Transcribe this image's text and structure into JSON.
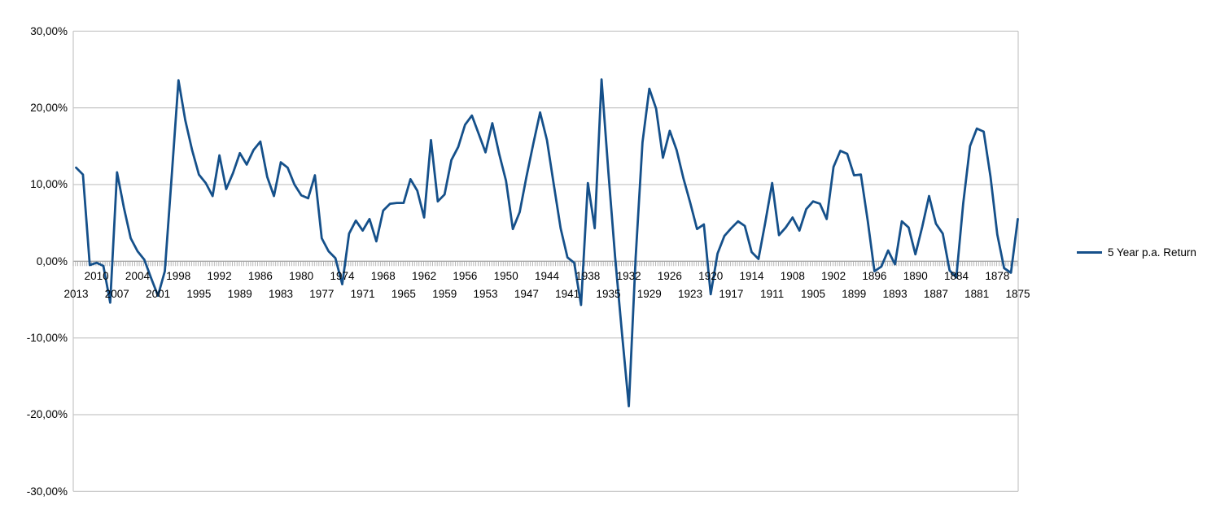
{
  "chart_data": {
    "type": "line",
    "title": "",
    "xlabel": "",
    "ylabel": "",
    "grid": true,
    "legend": {
      "position": "right",
      "label": "5 Year p.a. Return"
    },
    "line_color": "#15508A",
    "grid_color": "#c6c6c6",
    "axis_color": "#a6a6a6",
    "y_axis": {
      "min": -30,
      "max": 30,
      "step": 10,
      "tick_values": [
        30,
        20,
        10,
        0,
        -10,
        -20,
        -30
      ],
      "tick_labels": [
        "30,00%",
        "20,00%",
        "10,00%",
        "0,00%",
        "-10,00%",
        "-20,00%",
        "-30,00%"
      ],
      "format": "percent, comma decimal"
    },
    "x_axis": {
      "direction": "descending years left to right",
      "first_year": 2013,
      "last_year": 1875,
      "label_interval": 3,
      "upper_row_labels": [
        "2010",
        "2004",
        "1998",
        "1992",
        "1986",
        "1980",
        "1974",
        "1968",
        "1962",
        "1956",
        "1950",
        "1944",
        "1938",
        "1932",
        "1926",
        "1920",
        "1914",
        "1908",
        "1902",
        "1896",
        "1890",
        "1884",
        "1878"
      ],
      "lower_row_labels": [
        "2013",
        "2007",
        "2001",
        "1995",
        "1989",
        "1983",
        "1977",
        "1971",
        "1965",
        "1959",
        "1953",
        "1947",
        "1941",
        "1935",
        "1929",
        "1923",
        "1917",
        "1911",
        "1905",
        "1899",
        "1893",
        "1887",
        "1881",
        "1875"
      ]
    },
    "series": [
      {
        "name": "5 Year p.a. Return",
        "unit": "%",
        "x": [
          2013,
          2012,
          2011,
          2010,
          2009,
          2008,
          2007,
          2006,
          2005,
          2004,
          2003,
          2002,
          2001,
          2000,
          1999,
          1998,
          1997,
          1996,
          1995,
          1994,
          1993,
          1992,
          1991,
          1990,
          1989,
          1988,
          1987,
          1986,
          1985,
          1984,
          1983,
          1982,
          1981,
          1980,
          1979,
          1978,
          1977,
          1976,
          1975,
          1974,
          1973,
          1972,
          1971,
          1970,
          1969,
          1968,
          1967,
          1966,
          1965,
          1964,
          1963,
          1962,
          1961,
          1960,
          1959,
          1958,
          1957,
          1956,
          1955,
          1954,
          1953,
          1952,
          1951,
          1950,
          1949,
          1948,
          1947,
          1946,
          1945,
          1944,
          1943,
          1942,
          1941,
          1940,
          1939,
          1938,
          1937,
          1936,
          1935,
          1934,
          1933,
          1932,
          1931,
          1930,
          1929,
          1928,
          1927,
          1926,
          1925,
          1924,
          1923,
          1922,
          1921,
          1920,
          1919,
          1918,
          1917,
          1916,
          1915,
          1914,
          1913,
          1912,
          1911,
          1910,
          1909,
          1908,
          1907,
          1906,
          1905,
          1904,
          1903,
          1902,
          1901,
          1900,
          1899,
          1898,
          1897,
          1896,
          1895,
          1894,
          1893,
          1892,
          1891,
          1890,
          1889,
          1888,
          1887,
          1886,
          1885,
          1884,
          1883,
          1882,
          1881,
          1880,
          1879,
          1878,
          1877,
          1876,
          1875
        ],
        "values": [
          12.2,
          11.3,
          -0.5,
          -0.2,
          -0.6,
          -5.4,
          11.6,
          7.0,
          3.0,
          1.3,
          0.2,
          -2.2,
          -4.5,
          -1.3,
          11.0,
          23.6,
          18.4,
          14.5,
          11.3,
          10.2,
          8.5,
          13.8,
          9.4,
          11.5,
          14.1,
          12.6,
          14.5,
          15.6,
          11.0,
          8.5,
          12.9,
          12.2,
          10.0,
          8.6,
          8.2,
          11.2,
          3.0,
          1.3,
          0.4,
          -3.0,
          3.6,
          5.3,
          4.0,
          5.5,
          2.6,
          6.6,
          7.5,
          7.6,
          7.6,
          10.7,
          9.2,
          5.7,
          15.8,
          7.8,
          8.7,
          13.2,
          14.9,
          17.8,
          19.0,
          16.6,
          14.2,
          18.0,
          14.0,
          10.5,
          4.2,
          6.4,
          11.0,
          15.3,
          19.4,
          15.8,
          10.0,
          4.3,
          0.5,
          -0.2,
          -5.7,
          10.2,
          4.3,
          23.7,
          11.6,
          0.5,
          -9.4,
          -18.9,
          0.5,
          15.5,
          22.5,
          19.9,
          13.5,
          17.0,
          14.5,
          10.8,
          7.6,
          4.2,
          4.8,
          -4.3,
          1.0,
          3.3,
          4.3,
          5.2,
          4.6,
          1.2,
          0.3,
          5.1,
          10.2,
          3.4,
          4.4,
          5.7,
          4.0,
          6.8,
          7.8,
          7.5,
          5.5,
          12.3,
          14.4,
          14.0,
          11.2,
          11.3,
          5.3,
          -1.3,
          -0.7,
          1.4,
          -0.4,
          5.2,
          4.4,
          0.9,
          4.5,
          8.5,
          4.9,
          3.6,
          -1.2,
          -2.1,
          7.5,
          15.0,
          17.3,
          16.9,
          11.0,
          3.5,
          -0.9,
          -1.5,
          5.5
        ]
      }
    ]
  }
}
